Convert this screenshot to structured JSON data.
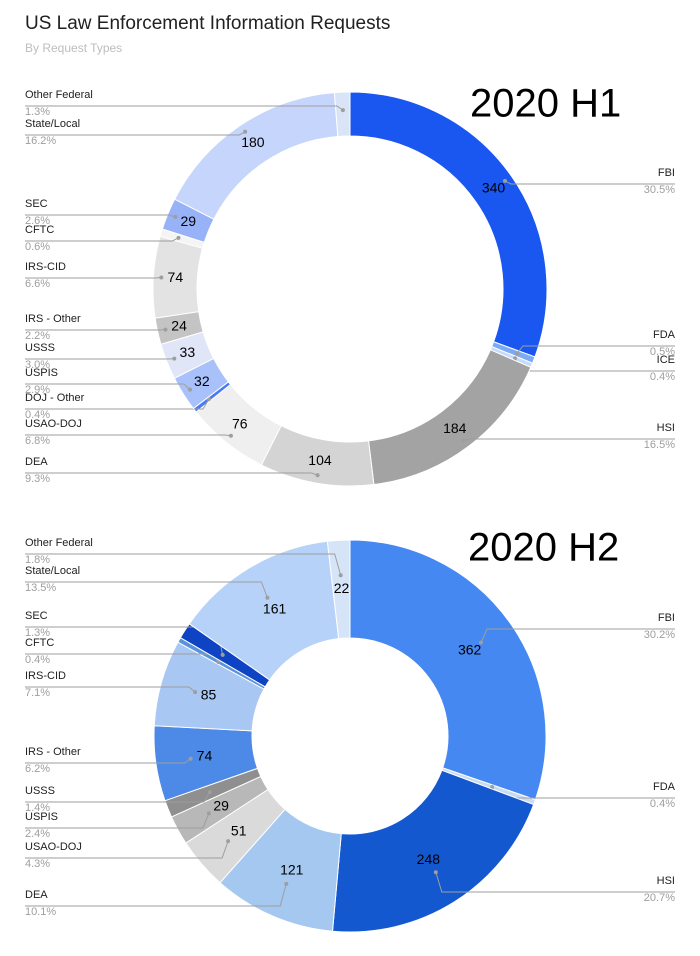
{
  "header": {
    "title": "US Law Enforcement Information Requests",
    "subtitle": "By Request Types"
  },
  "chart_data": [
    {
      "type": "pie",
      "variant": "donut",
      "title": "2020 H1",
      "slices": [
        {
          "name": "FBI",
          "value": 340,
          "pct": "30.5%",
          "color": "#1a56f0",
          "value_label": "340"
        },
        {
          "name": "FDA",
          "value": 6,
          "pct": "0.5%",
          "color": "#7baaf7",
          "value_label": ""
        },
        {
          "name": "ICE",
          "value": 4,
          "pct": "0.4%",
          "color": "#c6dafc",
          "value_label": ""
        },
        {
          "name": "HSI",
          "value": 184,
          "pct": "16.5%",
          "color": "#a3a3a3",
          "value_label": "184"
        },
        {
          "name": "DEA",
          "value": 104,
          "pct": "9.3%",
          "color": "#d4d4d4",
          "value_label": "104"
        },
        {
          "name": "USAO-DOJ",
          "value": 76,
          "pct": "6.8%",
          "color": "#efefef",
          "value_label": "76"
        },
        {
          "name": "DOJ - Other",
          "value": 4,
          "pct": "0.4%",
          "color": "#4a7bf5",
          "value_label": ""
        },
        {
          "name": "USPIS",
          "value": 32,
          "pct": "2.9%",
          "color": "#a8c1fb",
          "value_label": "32"
        },
        {
          "name": "USSS",
          "value": 33,
          "pct": "3.0%",
          "color": "#e0e6f8",
          "value_label": "33"
        },
        {
          "name": "IRS - Other",
          "value": 24,
          "pct": "2.2%",
          "color": "#c4c4c4",
          "value_label": "24"
        },
        {
          "name": "IRS-CID",
          "value": 74,
          "pct": "6.6%",
          "color": "#e3e3e3",
          "value_label": "74"
        },
        {
          "name": "CFTC",
          "value": 7,
          "pct": "0.6%",
          "color": "#f4f4f4",
          "value_label": ""
        },
        {
          "name": "SEC",
          "value": 29,
          "pct": "2.6%",
          "color": "#98b2f8",
          "value_label": "29"
        },
        {
          "name": "State/Local",
          "value": 180,
          "pct": "16.2%",
          "color": "#c5d5fb",
          "value_label": "180"
        },
        {
          "name": "Other Federal",
          "value": 14,
          "pct": "1.3%",
          "color": "#d9e4f6",
          "value_label": ""
        }
      ]
    },
    {
      "type": "pie",
      "variant": "donut",
      "title": "2020 H2",
      "slices": [
        {
          "name": "FBI",
          "value": 362,
          "pct": "30.2%",
          "color": "#4688f1",
          "value_label": "362"
        },
        {
          "name": "FDA",
          "value": 5,
          "pct": "0.4%",
          "color": "#c7dbf6",
          "value_label": ""
        },
        {
          "name": "HSI",
          "value": 248,
          "pct": "20.7%",
          "color": "#1458cf",
          "value_label": "248"
        },
        {
          "name": "DEA",
          "value": 121,
          "pct": "10.1%",
          "color": "#a4c8ef",
          "value_label": "121"
        },
        {
          "name": "USAO-DOJ",
          "value": 51,
          "pct": "4.3%",
          "color": "#dadada",
          "value_label": "51"
        },
        {
          "name": "USPIS",
          "value": 29,
          "pct": "2.4%",
          "color": "#b8b8b8",
          "value_label": "29"
        },
        {
          "name": "USSS",
          "value": 17,
          "pct": "1.4%",
          "color": "#8f8f8f",
          "value_label": ""
        },
        {
          "name": "IRS - Other",
          "value": 74,
          "pct": "6.2%",
          "color": "#4d89e6",
          "value_label": "74"
        },
        {
          "name": "IRS-CID",
          "value": 85,
          "pct": "7.1%",
          "color": "#a8c7f2",
          "value_label": "85"
        },
        {
          "name": "CFTC",
          "value": 5,
          "pct": "0.4%",
          "color": "#5a93dc",
          "value_label": ""
        },
        {
          "name": "SEC",
          "value": 16,
          "pct": "1.3%",
          "color": "#0e44c4",
          "value_label": ""
        },
        {
          "name": "State/Local",
          "value": 161,
          "pct": "13.5%",
          "color": "#b7d2f8",
          "value_label": "161"
        },
        {
          "name": "Other Federal",
          "value": 22,
          "pct": "1.8%",
          "color": "#d5e4f7",
          "value_label": "22"
        }
      ]
    }
  ]
}
